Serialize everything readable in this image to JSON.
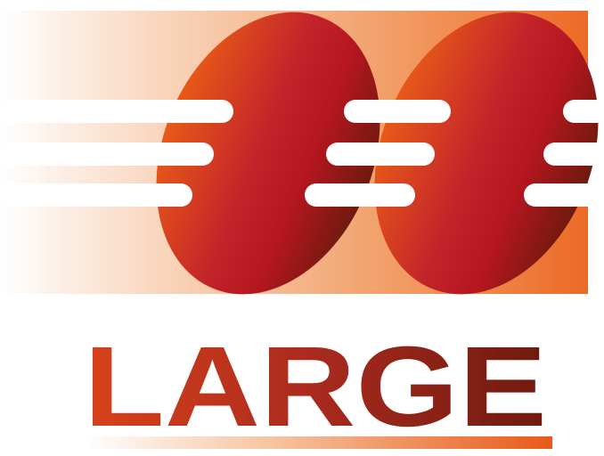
{
  "logo": {
    "wordmark": "LARGE",
    "colors": {
      "dark_red": "#6e1a0e",
      "crimson": "#b5161f",
      "orange": "#e85a18",
      "light_orange": "#f3a46e",
      "fade_white": "#ffffff"
    }
  }
}
